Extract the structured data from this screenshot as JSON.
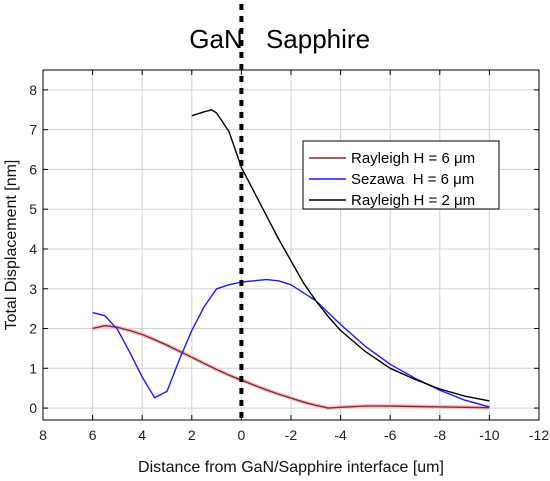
{
  "chart_data": {
    "type": "line",
    "title": "",
    "xlabel": "Distance from GaN/Sapphire interface [um]",
    "ylabel": "Total Displacement [nm]",
    "xlim": [
      8,
      -12
    ],
    "ylim": [
      -0.3,
      8.5
    ],
    "x_reversed": true,
    "grid": true,
    "x_ticks": [
      8,
      6,
      4,
      2,
      0,
      -2,
      -4,
      -6,
      -8,
      -10,
      -12
    ],
    "x_tick_labels": [
      "8",
      "6",
      "4",
      "2",
      "0",
      "-2",
      "-4",
      "-6",
      "-8",
      "-10",
      "-12"
    ],
    "y_ticks": [
      0,
      1,
      2,
      3,
      4,
      5,
      6,
      7,
      8
    ],
    "y_tick_labels": [
      "0",
      "1",
      "2",
      "3",
      "4",
      "5",
      "6",
      "7",
      "8"
    ],
    "regions": [
      {
        "label": "GaN",
        "side": "left"
      },
      {
        "label": "Sapphire",
        "side": "right"
      }
    ],
    "interface_line": {
      "x": 0,
      "style": "dashed",
      "color": "#000000"
    },
    "legend": {
      "placement": "upper-right"
    },
    "series": [
      {
        "name": "Rayleigh H = 6 μm",
        "color": "#8b2a1e",
        "x": [
          6,
          5.5,
          5,
          4.5,
          4,
          3.5,
          3,
          2.5,
          2,
          1.5,
          1,
          0.5,
          0,
          -0.5,
          -1,
          -1.5,
          -2,
          -2.5,
          -3,
          -3.5,
          -4,
          -5,
          -6,
          -7,
          -8,
          -9,
          -10
        ],
        "y": [
          2.0,
          2.07,
          2.03,
          1.95,
          1.85,
          1.72,
          1.58,
          1.43,
          1.28,
          1.12,
          0.97,
          0.83,
          0.7,
          0.58,
          0.46,
          0.35,
          0.25,
          0.15,
          0.07,
          0.0,
          0.02,
          0.05,
          0.05,
          0.04,
          0.03,
          0.02,
          0.01
        ]
      },
      {
        "name": "Sezawa  H = 6 μm",
        "color": "#1a1aff",
        "x": [
          6,
          5.5,
          5,
          4.5,
          4,
          3.5,
          3,
          2.5,
          2,
          1.5,
          1,
          0.5,
          0,
          -0.5,
          -1,
          -1.5,
          -2,
          -3,
          -4,
          -5,
          -6,
          -7,
          -8,
          -9,
          -10
        ],
        "y": [
          2.4,
          2.32,
          1.98,
          1.4,
          0.78,
          0.26,
          0.42,
          1.22,
          1.95,
          2.55,
          3.0,
          3.1,
          3.17,
          3.2,
          3.23,
          3.2,
          3.1,
          2.7,
          2.1,
          1.55,
          1.1,
          0.75,
          0.45,
          0.2,
          0.03
        ]
      },
      {
        "name": "Rayleigh H = 2 μm",
        "color": "#000000",
        "x": [
          2,
          1.5,
          1.2,
          1,
          0.5,
          0,
          -0.5,
          -1,
          -1.5,
          -2,
          -2.5,
          -3,
          -3.5,
          -4,
          -5,
          -6,
          -7,
          -8,
          -9,
          -10
        ],
        "y": [
          7.35,
          7.45,
          7.5,
          7.42,
          6.95,
          6.05,
          5.45,
          4.85,
          4.25,
          3.7,
          3.15,
          2.7,
          2.3,
          1.95,
          1.42,
          1.0,
          0.72,
          0.48,
          0.3,
          0.18
        ]
      }
    ]
  }
}
